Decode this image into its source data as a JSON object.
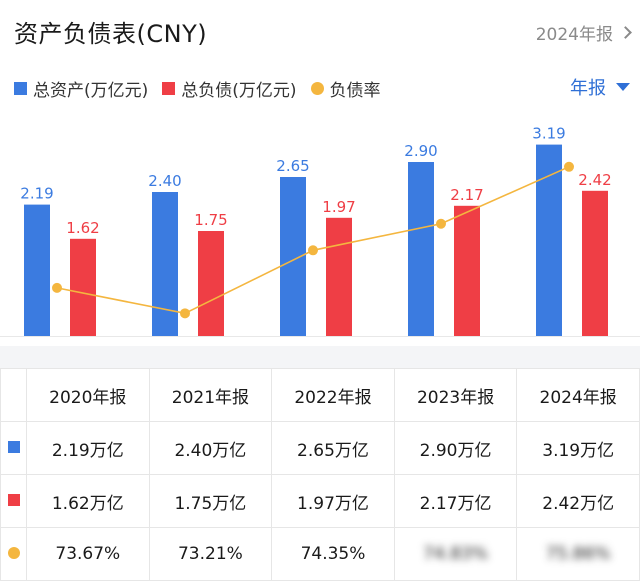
{
  "header": {
    "title": "资产负债表(CNY)",
    "period_link": "2024年报"
  },
  "period_select": "年报",
  "colors": {
    "assets": "#3b7be0",
    "liabilities": "#ef3e45",
    "ratio": "#f4b63f"
  },
  "icons": {
    "period_link": "chevron-right-icon",
    "period_select": "caret-down-icon"
  },
  "chart_data": {
    "type": "bar",
    "categories": [
      "2020年报",
      "2021年报",
      "2022年报",
      "2023年报",
      "2024年报"
    ],
    "series": [
      {
        "name": "总资产(万亿元)",
        "type": "bar",
        "values": [
          2.19,
          2.4,
          2.65,
          2.9,
          3.19
        ],
        "labels": [
          "2.19",
          "2.40",
          "2.65",
          "2.90",
          "3.19"
        ]
      },
      {
        "name": "总负债(万亿元)",
        "type": "bar",
        "values": [
          1.62,
          1.75,
          1.97,
          2.17,
          2.42
        ],
        "labels": [
          "1.62",
          "1.75",
          "1.97",
          "2.17",
          "2.42"
        ]
      },
      {
        "name": "负债率",
        "type": "line",
        "values": [
          73.67,
          73.21,
          74.35,
          74.83,
          75.86
        ]
      }
    ],
    "ylim_bar": [
      0,
      3.3
    ],
    "ylim_line": [
      72.8,
      76.2
    ],
    "legend_position": "top-left",
    "grid": false
  },
  "table": {
    "headers": [
      "2020年报",
      "2021年报",
      "2022年报",
      "2023年报",
      "2024年报"
    ],
    "rows": [
      {
        "series": "assets",
        "cells": [
          "2.19万亿",
          "2.40万亿",
          "2.65万亿",
          "2.90万亿",
          "3.19万亿"
        ]
      },
      {
        "series": "liabilities",
        "cells": [
          "1.62万亿",
          "1.75万亿",
          "1.97万亿",
          "2.17万亿",
          "2.42万亿"
        ]
      },
      {
        "series": "ratio",
        "cells": [
          "73.67%",
          "73.21%",
          "74.35%",
          "74.83%",
          "75.86%"
        ]
      }
    ]
  }
}
